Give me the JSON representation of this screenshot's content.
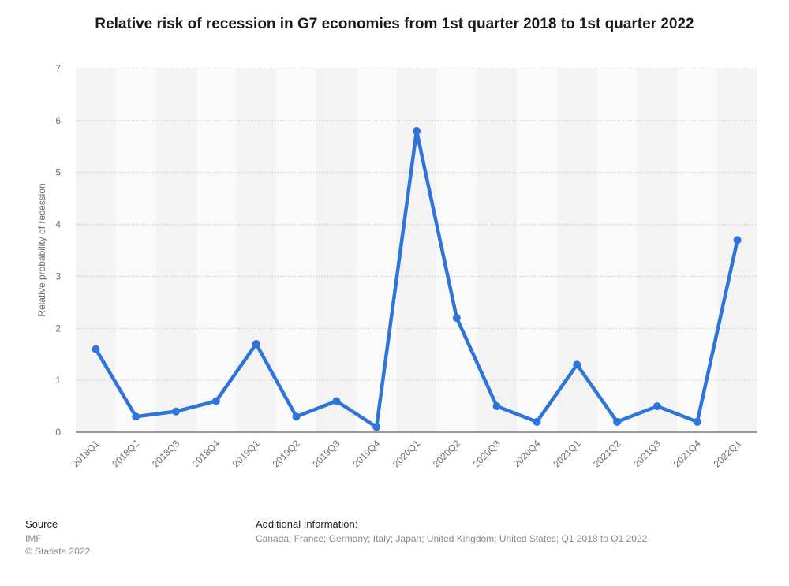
{
  "chart_data": {
    "type": "line",
    "title": "Relative risk of recession in G7 economies from 1st quarter 2018 to 1st quarter 2022",
    "xlabel": "",
    "ylabel": "Relative probability of recession",
    "ylim": [
      0,
      7
    ],
    "yticks": [
      0,
      1,
      2,
      3,
      4,
      5,
      6,
      7
    ],
    "categories": [
      "2018Q1",
      "2018Q2",
      "2018Q3",
      "2018Q4",
      "2019Q1",
      "2019Q2",
      "2019Q3",
      "2019Q4",
      "2020Q1",
      "2020Q2",
      "2020Q3",
      "2020Q4",
      "2021Q1",
      "2021Q2",
      "2021Q3",
      "2021Q4",
      "2022Q1"
    ],
    "series": [
      {
        "name": "Relative probability of recession",
        "values": [
          1.6,
          0.3,
          0.4,
          0.6,
          1.7,
          0.3,
          0.6,
          0.1,
          5.8,
          2.2,
          0.5,
          0.2,
          1.3,
          0.2,
          0.5,
          0.2,
          3.7
        ],
        "color": "#2f74d9"
      }
    ],
    "grid": true
  },
  "footer": {
    "source_label": "Source",
    "source_value": "IMF",
    "copyright": "© Statista 2022",
    "additional_label": "Additional Information:",
    "additional_value": "Canada; France; Germany; Italy; Japan; United Kingdom; United States; Q1 2018 to Q1 2022"
  }
}
